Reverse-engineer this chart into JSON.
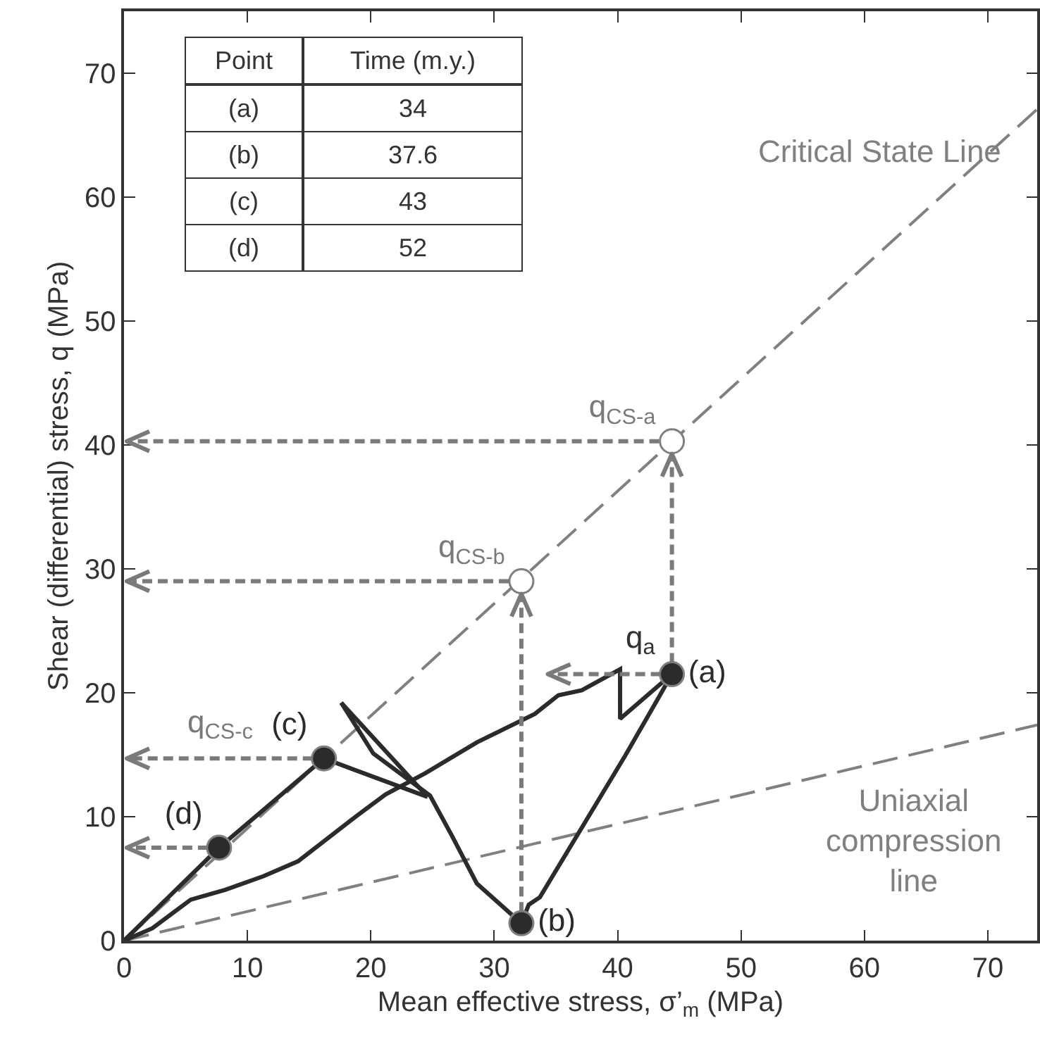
{
  "chart_data": {
    "type": "line",
    "xlabel": "Mean effective stress, σ’$_{m}$ (MPa)",
    "ylabel": "Shear (differential) stress, q (MPa)",
    "xlim": [
      0,
      74
    ],
    "ylim": [
      0,
      75
    ],
    "xticks": [
      0,
      10,
      20,
      30,
      40,
      50,
      60,
      70
    ],
    "yticks": [
      0,
      10,
      20,
      30,
      40,
      50,
      60,
      70
    ],
    "grid": false,
    "legend": false,
    "series": [
      {
        "name": "Critical State Line",
        "color": "#808080",
        "line_style": "dashed",
        "marker": "none",
        "x": [
          0,
          74
        ],
        "values": [
          0,
          67.1
        ]
      },
      {
        "name": "Uniaxial\ncompression\nline",
        "color": "#808080",
        "line_style": "dashed",
        "marker": "none",
        "x": [
          0,
          74
        ],
        "values": [
          0,
          17.4
        ]
      },
      {
        "color": "#2b2b2b",
        "line_style": "solid",
        "marker": "none",
        "x": [
          0,
          2.3,
          5.4,
          8.2,
          11.3,
          14.1,
          18.5,
          21.2,
          24.4,
          28.6,
          33.3,
          35.2,
          37.1,
          40.2,
          40.2,
          44.4
        ],
        "values": [
          0,
          1.0,
          3.3,
          4.1,
          5.2,
          6.4,
          9.8,
          11.8,
          13.5,
          16.0,
          18.3,
          19.8,
          20.2,
          21.9,
          17.9,
          21.5
        ]
      },
      {
        "color": "#2b2b2b",
        "line_style": "solid",
        "marker": "none",
        "x": [
          17.6,
          20.2,
          24.8,
          26.5,
          28.6,
          32.2,
          32.8,
          33.7,
          40.6,
          43.2,
          44.4
        ],
        "values": [
          19.2,
          15.1,
          11.7,
          8.6,
          4.6,
          1.4,
          2.9,
          3.5,
          14.9,
          19.4,
          21.5
        ]
      },
      {
        "color": "#2b2b2b",
        "line_style": "solid",
        "marker": "none",
        "x": [
          17.6,
          24.6
        ],
        "values": [
          19.2,
          11.6
        ]
      },
      {
        "color": "#2b2b2b",
        "line_style": "solid",
        "marker": "none",
        "x": [
          0,
          7.7,
          16.2,
          24.6
        ],
        "values": [
          0,
          7.5,
          14.7,
          11.6
        ]
      },
      {
        "type": "scatter",
        "color": "#2b2b2b",
        "marker": "circle",
        "x": [
          44.4,
          32.2,
          16.2,
          7.7
        ],
        "values": [
          21.5,
          1.4,
          14.7,
          7.5
        ],
        "value_labels": [
          "(a)",
          "(b)",
          "(c)",
          "(d)"
        ]
      },
      {
        "type": "scatter",
        "color": "#ffffff",
        "marker": "circle",
        "x": [
          44.4,
          32.2
        ],
        "values": [
          40.3,
          29.0
        ],
        "value_labels": [
          "q$_{CS-a}$",
          "q$_{CS-b}$"
        ]
      }
    ],
    "annotations": [
      "q$_{a}$",
      {
        "text": "q$_{CS-c}$",
        "x": 16.2,
        "y": 14.7
      },
      "Point",
      "Time (m.y.)",
      "(a)",
      "34",
      "(b)",
      "37.6",
      "(c)",
      "43",
      "(d)",
      "52"
    ]
  }
}
